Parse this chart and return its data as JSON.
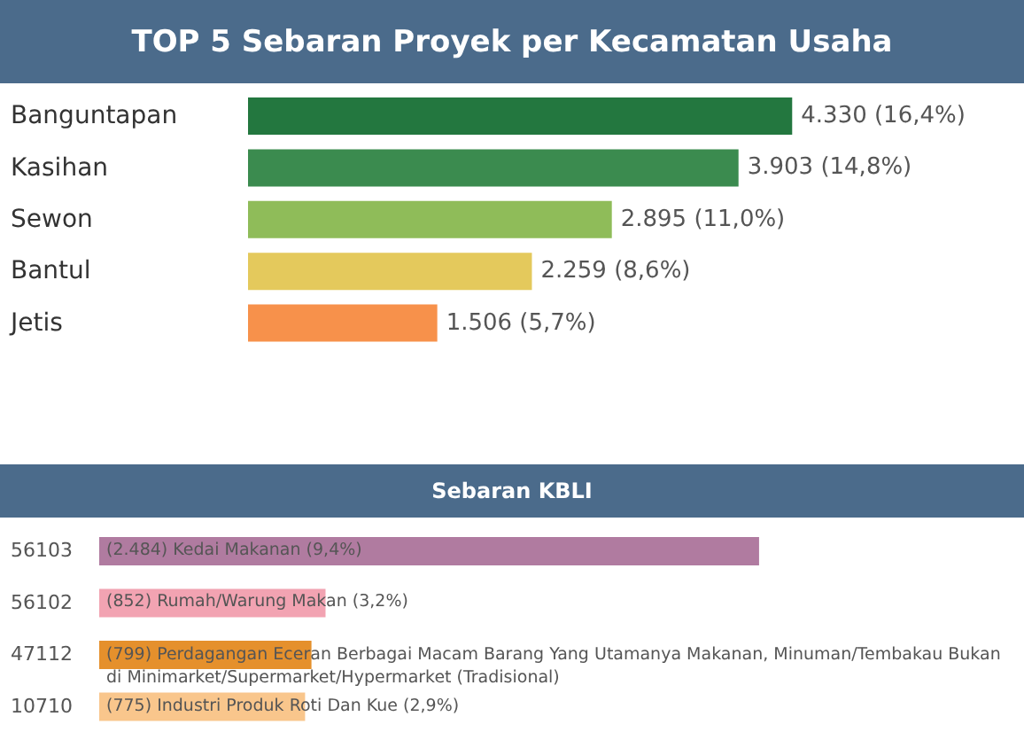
{
  "chart_data": [
    {
      "type": "bar",
      "orientation": "horizontal",
      "title": "TOP 5 Sebaran Proyek per Kecamatan Usaha",
      "categories": [
        "Banguntapan",
        "Kasihan",
        "Sewon",
        "Bantul",
        "Jetis"
      ],
      "values": [
        4330,
        3903,
        2895,
        2259,
        1506
      ],
      "colors": [
        "#23773f",
        "#3b8b4f",
        "#8fbc59",
        "#e4c95c",
        "#f7914b"
      ],
      "value_labels": [
        "4.330 (16,4%)",
        "3.903 (14,8%)",
        "2.895 (11,0%)",
        "2.259 (8,6%)",
        "1.506 (5,7%)"
      ]
    },
    {
      "type": "bar",
      "orientation": "horizontal",
      "title": "Sebaran KBLI",
      "categories": [
        "56103",
        "56102",
        "47112",
        "10710"
      ],
      "values": [
        2484,
        852,
        799,
        775
      ],
      "colors": [
        "#b07ba0",
        "#f2a3b2",
        "#e5902c",
        "#f9c68c"
      ],
      "value_labels": [
        "(2.484) Kedai Makanan (9,4%)",
        "(852) Rumah/Warung Makan (3,2%)",
        "(799) Perdagangan Eceran Berbagai Macam Barang Yang Utamanya Makanan, Minuman/Tembakau Bukan di Minimarket/Supermarket/Hypermarket (Tradisional)",
        "(775) Industri Produk Roti Dan Kue (2,9%)"
      ]
    }
  ]
}
